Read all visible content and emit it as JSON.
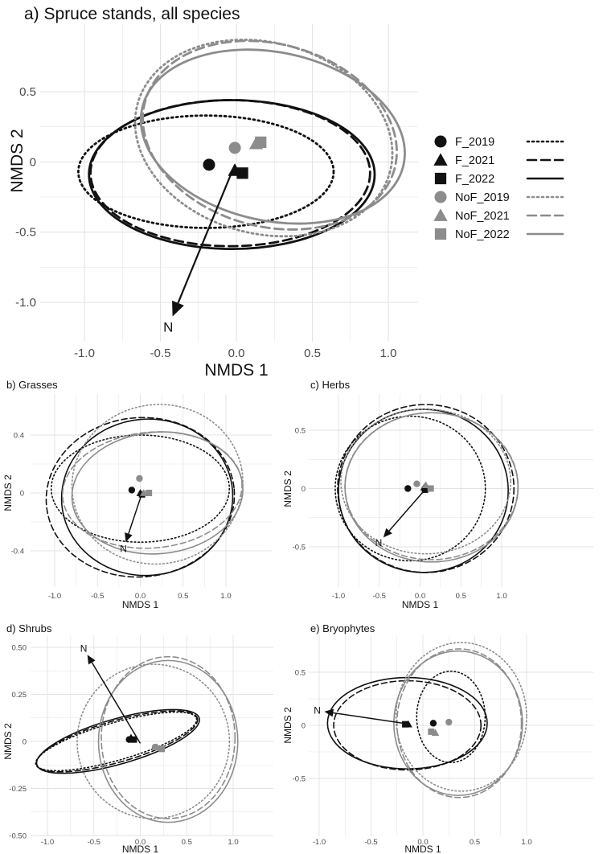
{
  "colors": {
    "forest": "#111111",
    "noforest": "#8c8c8c",
    "grid": "#e3e3e3",
    "axis_text": "#4a4a4a"
  },
  "legend": {
    "entries": [
      {
        "label": "F_2019",
        "shape": "circle",
        "group": "forest",
        "line": "dotted"
      },
      {
        "label": "F_2021",
        "shape": "triangle",
        "group": "forest",
        "line": "dashed"
      },
      {
        "label": "F_2022",
        "shape": "square",
        "group": "forest",
        "line": "solid"
      },
      {
        "label": "NoF_2019",
        "shape": "circle",
        "group": "noforest",
        "line": "dotted"
      },
      {
        "label": "NoF_2021",
        "shape": "triangle",
        "group": "noforest",
        "line": "dashed"
      },
      {
        "label": "NoF_2022",
        "shape": "square",
        "group": "noforest",
        "line": "solid"
      }
    ]
  },
  "chart_data": [
    {
      "id": "a",
      "type": "scatter",
      "title": "a) Spruce stands, all species",
      "xlabel": "NMDS 1",
      "ylabel": "NMDS 2",
      "xlim": [
        -1.0,
        1.0
      ],
      "ylim": [
        -1.0,
        0.5
      ],
      "xticks": [
        -1.0,
        -0.5,
        0.0,
        0.5,
        1.0
      ],
      "xtick_labels": [
        "-1.0",
        "-0.5",
        "0.0",
        "0.5",
        "1.0"
      ],
      "yticks": [
        -1.0,
        -0.5,
        0.0,
        0.5
      ],
      "ytick_labels": [
        "-1.0",
        "-0.5",
        "0",
        "0.5"
      ],
      "centroids": [
        {
          "series": "F_2019",
          "x": -0.18,
          "y": -0.02
        },
        {
          "series": "F_2021",
          "x": -0.01,
          "y": -0.06
        },
        {
          "series": "F_2022",
          "x": 0.04,
          "y": -0.08
        },
        {
          "series": "NoF_2019",
          "x": -0.01,
          "y": 0.1
        },
        {
          "series": "NoF_2021",
          "x": 0.13,
          "y": 0.13
        },
        {
          "series": "NoF_2022",
          "x": 0.16,
          "y": 0.14
        }
      ],
      "ellipses": [
        {
          "series": "F_2019",
          "cx": -0.2,
          "cy": -0.07,
          "rx": 0.84,
          "ry": 0.4,
          "angle": 0
        },
        {
          "series": "F_2021",
          "cx": -0.04,
          "cy": -0.08,
          "rx": 0.92,
          "ry": 0.52,
          "angle": 0
        },
        {
          "series": "F_2022",
          "cx": -0.03,
          "cy": -0.09,
          "rx": 0.94,
          "ry": 0.53,
          "angle": 0
        },
        {
          "series": "NoF_2019",
          "cx": 0.18,
          "cy": 0.17,
          "rx": 0.86,
          "ry": 0.68,
          "angle": -15
        },
        {
          "series": "NoF_2021",
          "cx": 0.22,
          "cy": 0.19,
          "rx": 0.85,
          "ry": 0.65,
          "angle": -15
        },
        {
          "series": "NoF_2022",
          "cx": 0.24,
          "cy": 0.18,
          "rx": 0.88,
          "ry": 0.6,
          "angle": -12
        }
      ],
      "vector": {
        "label": "N",
        "x0": -0.01,
        "y0": -0.02,
        "x1": -0.42,
        "y1": -1.1
      }
    },
    {
      "id": "b",
      "type": "scatter",
      "title": "b) Grasses",
      "xlabel": "NMDS 1",
      "ylabel": "NMDS 2",
      "xlim": [
        -1.0,
        1.0
      ],
      "ylim": [
        -0.4,
        0.4
      ],
      "xticks": [
        -1.0,
        -0.5,
        0.0,
        0.5,
        1.0
      ],
      "xtick_labels": [
        "-1.0",
        "-0.5",
        "0.0",
        "0.5",
        "1.0"
      ],
      "yticks": [
        -0.4,
        0.0,
        0.4
      ],
      "ytick_labels": [
        "-0.4",
        "0",
        "0.4"
      ],
      "centroids": [
        {
          "series": "F_2019",
          "x": -0.1,
          "y": 0.02
        },
        {
          "series": "F_2021",
          "x": 0.0,
          "y": 0.0
        },
        {
          "series": "F_2022",
          "x": 0.02,
          "y": -0.01
        },
        {
          "series": "NoF_2019",
          "x": -0.01,
          "y": 0.1
        },
        {
          "series": "NoF_2021",
          "x": 0.04,
          "y": 0.0
        },
        {
          "series": "NoF_2022",
          "x": 0.1,
          "y": 0.0
        }
      ],
      "ellipses": [
        {
          "series": "F_2019",
          "cx": 0.0,
          "cy": 0.03,
          "rx": 1.04,
          "ry": 0.37,
          "angle": 0
        },
        {
          "series": "F_2021",
          "cx": 0.0,
          "cy": -0.03,
          "rx": 1.1,
          "ry": 0.55,
          "angle": 5
        },
        {
          "series": "F_2022",
          "cx": 0.08,
          "cy": -0.03,
          "rx": 1.0,
          "ry": 0.54,
          "angle": 5
        },
        {
          "series": "NoF_2019",
          "cx": 0.2,
          "cy": 0.06,
          "rx": 1.0,
          "ry": 0.55,
          "angle": 10
        },
        {
          "series": "NoF_2021",
          "cx": 0.14,
          "cy": 0.02,
          "rx": 1.05,
          "ry": 0.4,
          "angle": 5
        },
        {
          "series": "NoF_2022",
          "cx": 0.2,
          "cy": 0.0,
          "rx": 1.0,
          "ry": 0.42,
          "angle": 5
        }
      ],
      "vector": {
        "label": "N",
        "x0": 0.01,
        "y0": -0.02,
        "x1": -0.17,
        "y1": -0.34
      }
    },
    {
      "id": "c",
      "type": "scatter",
      "title": "c) Herbs",
      "xlabel": "NMDS 1",
      "ylabel": "NMDS 2",
      "xlim": [
        -1.0,
        1.0
      ],
      "ylim": [
        -0.5,
        0.5
      ],
      "xticks": [
        -1.0,
        -0.5,
        0.0,
        0.5,
        1.0
      ],
      "xtick_labels": [
        "-1.0",
        "-0.5",
        "0.0",
        "0.5",
        "1.0"
      ],
      "yticks": [
        -0.5,
        0.0,
        0.5
      ],
      "ytick_labels": [
        "-0.5",
        "0",
        "0.5"
      ],
      "centroids": [
        {
          "series": "F_2019",
          "x": -0.15,
          "y": 0.0
        },
        {
          "series": "F_2021",
          "x": 0.05,
          "y": 0.01
        },
        {
          "series": "F_2022",
          "x": 0.06,
          "y": -0.01
        },
        {
          "series": "NoF_2019",
          "x": -0.04,
          "y": 0.04
        },
        {
          "series": "NoF_2021",
          "x": 0.07,
          "y": 0.03
        },
        {
          "series": "NoF_2022",
          "x": 0.13,
          "y": 0.0
        }
      ],
      "ellipses": [
        {
          "series": "F_2019",
          "cx": -0.12,
          "cy": 0.0,
          "rx": 0.92,
          "ry": 0.62,
          "angle": 0
        },
        {
          "series": "F_2021",
          "cx": 0.07,
          "cy": 0.0,
          "rx": 1.08,
          "ry": 0.72,
          "angle": 0
        },
        {
          "series": "F_2022",
          "cx": 0.04,
          "cy": -0.02,
          "rx": 1.04,
          "ry": 0.7,
          "angle": 0
        },
        {
          "series": "NoF_2019",
          "cx": 0.07,
          "cy": 0.06,
          "rx": 1.04,
          "ry": 0.62,
          "angle": 0
        },
        {
          "series": "NoF_2021",
          "cx": 0.14,
          "cy": 0.02,
          "rx": 1.06,
          "ry": 0.63,
          "angle": 0
        },
        {
          "series": "NoF_2022",
          "cx": 0.14,
          "cy": 0.01,
          "rx": 1.06,
          "ry": 0.64,
          "angle": 0
        }
      ],
      "vector": {
        "label": "N",
        "x0": 0.06,
        "y0": -0.01,
        "x1": -0.45,
        "y1": -0.42
      }
    },
    {
      "id": "d",
      "type": "scatter",
      "title": "d) Shrubs",
      "xlabel": "NMDS 1",
      "ylabel": "NMDS 2",
      "xlim": [
        -1.0,
        1.0
      ],
      "ylim": [
        -0.5,
        0.5
      ],
      "xticks": [
        -1.0,
        -0.5,
        0.0,
        0.5,
        1.0
      ],
      "xtick_labels": [
        "-1.0",
        "-0.5",
        "0.0",
        "0.5",
        "1.0"
      ],
      "yticks": [
        -0.5,
        -0.25,
        0.0,
        0.25,
        0.5
      ],
      "ytick_labels": [
        "-0.50",
        "-0.25",
        "0",
        "0.25",
        "0.50"
      ],
      "centroids": [
        {
          "series": "F_2019",
          "x": -0.12,
          "y": 0.01
        },
        {
          "series": "F_2021",
          "x": -0.1,
          "y": 0.02
        },
        {
          "series": "F_2022",
          "x": -0.07,
          "y": 0.01
        },
        {
          "series": "NoF_2019",
          "x": 0.16,
          "y": -0.03
        },
        {
          "series": "NoF_2021",
          "x": 0.18,
          "y": -0.03
        },
        {
          "series": "NoF_2022",
          "x": 0.23,
          "y": -0.04
        }
      ],
      "ellipses": [
        {
          "series": "F_2019",
          "cx": -0.26,
          "cy": 0.0,
          "rx": 0.9,
          "ry": 0.1,
          "angle": 16
        },
        {
          "series": "F_2021",
          "cx": -0.25,
          "cy": 0.0,
          "rx": 0.9,
          "ry": 0.11,
          "angle": 16
        },
        {
          "series": "F_2022",
          "cx": -0.24,
          "cy": 0.0,
          "rx": 0.91,
          "ry": 0.12,
          "angle": 16
        },
        {
          "series": "NoF_2019",
          "cx": 0.14,
          "cy": 0.0,
          "rx": 0.82,
          "ry": 0.41,
          "angle": 0
        },
        {
          "series": "NoF_2021",
          "cx": 0.3,
          "cy": 0.02,
          "rx": 0.72,
          "ry": 0.43,
          "angle": 0
        },
        {
          "series": "NoF_2022",
          "cx": 0.3,
          "cy": 0.0,
          "rx": 0.75,
          "ry": 0.43,
          "angle": 0
        }
      ],
      "vector": {
        "label": "N",
        "x0": 0.0,
        "y0": -0.01,
        "x1": -0.57,
        "y1": 0.46
      }
    },
    {
      "id": "e",
      "type": "scatter",
      "title": "e) Bryophytes",
      "xlabel": "NMDS 1",
      "ylabel": "NMDS 2",
      "xlim": [
        -1.0,
        1.0
      ],
      "ylim": [
        -0.5,
        0.5
      ],
      "xticks": [
        -1.0,
        -0.5,
        0.0,
        0.5,
        1.0
      ],
      "xtick_labels": [
        "-1.0",
        "-0.5",
        "0.0",
        "0.5",
        "1.0"
      ],
      "yticks": [
        -0.5,
        0.0,
        0.5
      ],
      "ytick_labels": [
        "-0.5",
        "0",
        "0.5"
      ],
      "centroids": [
        {
          "series": "F_2019",
          "x": 0.1,
          "y": 0.02
        },
        {
          "series": "F_2021",
          "x": -0.14,
          "y": 0.01
        },
        {
          "series": "F_2022",
          "x": -0.17,
          "y": 0.01
        },
        {
          "series": "NoF_2019",
          "x": 0.25,
          "y": 0.03
        },
        {
          "series": "NoF_2021",
          "x": 0.12,
          "y": -0.07
        },
        {
          "series": "NoF_2022",
          "x": 0.08,
          "y": -0.06
        }
      ],
      "ellipses": [
        {
          "series": "F_2019",
          "cx": 0.27,
          "cy": 0.08,
          "rx": 0.33,
          "ry": 0.43,
          "angle": 0
        },
        {
          "series": "F_2021",
          "cx": -0.15,
          "cy": 0.0,
          "rx": 0.71,
          "ry": 0.42,
          "angle": 0
        },
        {
          "series": "F_2022",
          "cx": -0.15,
          "cy": 0.02,
          "rx": 0.77,
          "ry": 0.43,
          "angle": 0
        },
        {
          "series": "NoF_2019",
          "cx": 0.37,
          "cy": 0.08,
          "rx": 0.63,
          "ry": 0.7,
          "angle": 0
        },
        {
          "series": "NoF_2021",
          "cx": 0.35,
          "cy": 0.02,
          "rx": 0.6,
          "ry": 0.7,
          "angle": 0
        },
        {
          "series": "NoF_2022",
          "cx": 0.34,
          "cy": 0.02,
          "rx": 0.62,
          "ry": 0.68,
          "angle": 0
        }
      ],
      "vector": {
        "label": "N",
        "x0": -0.12,
        "y0": 0.01,
        "x1": -0.95,
        "y1": 0.13
      }
    }
  ]
}
